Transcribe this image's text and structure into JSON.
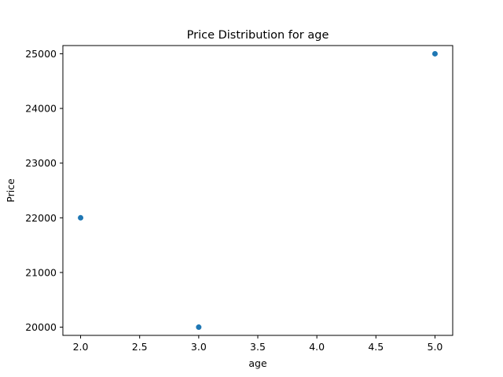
{
  "chart_data": {
    "type": "scatter",
    "title": "Price Distribution for age",
    "xlabel": "age",
    "ylabel": "Price",
    "xlim": [
      1.85,
      5.15
    ],
    "ylim": [
      19850,
      25150
    ],
    "xticks": [
      2.0,
      2.5,
      3.0,
      3.5,
      4.0,
      4.5,
      5.0
    ],
    "xtick_labels": [
      "2.0",
      "2.5",
      "3.0",
      "3.5",
      "4.0",
      "4.5",
      "5.0"
    ],
    "yticks": [
      20000,
      21000,
      22000,
      23000,
      24000,
      25000
    ],
    "ytick_labels": [
      "20000",
      "21000",
      "22000",
      "23000",
      "24000",
      "25000"
    ],
    "grid": false,
    "series": [
      {
        "color": "#1f77b4",
        "points": [
          {
            "x": 2,
            "y": 22000
          },
          {
            "x": 3,
            "y": 20000
          },
          {
            "x": 5,
            "y": 25000
          }
        ]
      }
    ]
  }
}
